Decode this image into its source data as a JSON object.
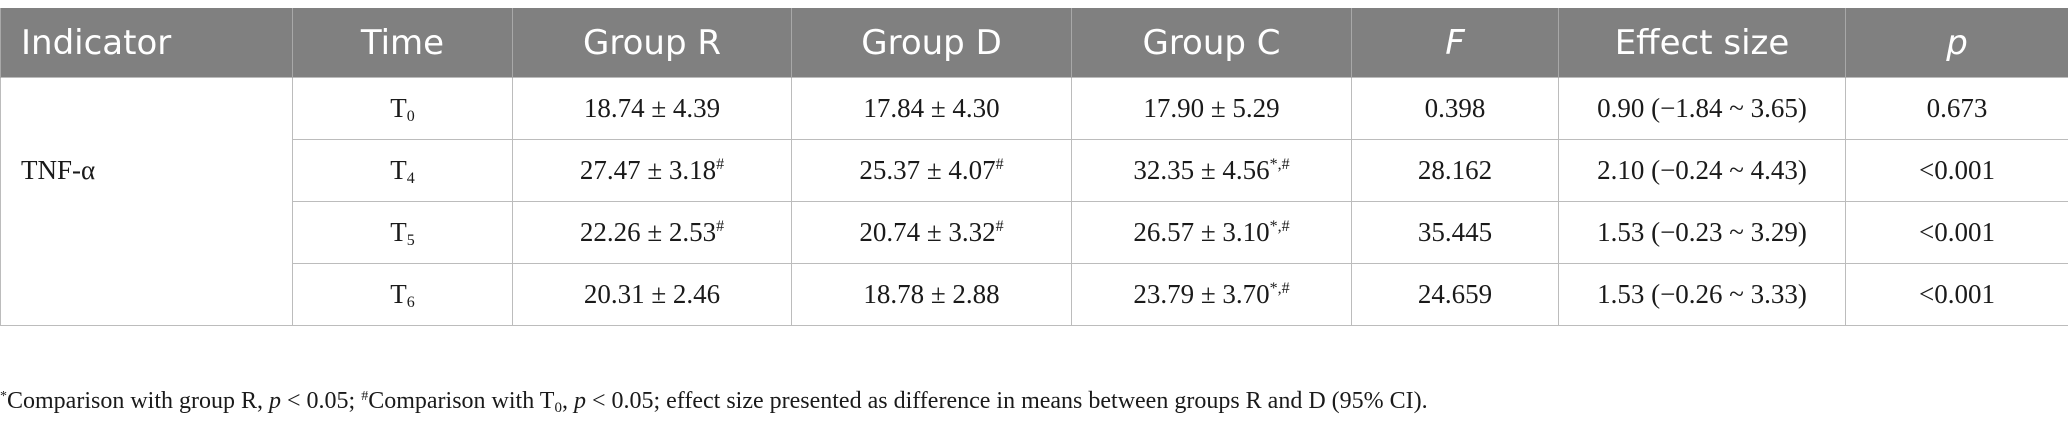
{
  "headers": {
    "indicator": "Indicator",
    "time": "Time",
    "group_r": "Group R",
    "group_d": "Group D",
    "group_c": "Group C",
    "f": "F",
    "effect_size": "Effect size",
    "p": "p"
  },
  "indicator_label": "TNF-α",
  "rows": [
    {
      "time_base": "T",
      "time_sub": "0",
      "r_val": "18.74 ± 4.39",
      "r_sup": "",
      "d_val": "17.84 ± 4.30",
      "d_sup": "",
      "c_val": "17.90 ± 5.29",
      "c_sup": "",
      "f": "0.398",
      "effect": "0.90 (−1.84 ~ 3.65)",
      "p": "0.673"
    },
    {
      "time_base": "T",
      "time_sub": "4",
      "r_val": "27.47 ± 3.18",
      "r_sup": "#",
      "d_val": "25.37 ± 4.07",
      "d_sup": "#",
      "c_val": "32.35 ± 4.56",
      "c_sup": "*,#",
      "f": "28.162",
      "effect": "2.10 (−0.24 ~ 4.43)",
      "p": "<0.001"
    },
    {
      "time_base": "T",
      "time_sub": "5",
      "r_val": "22.26 ± 2.53",
      "r_sup": "#",
      "d_val": "20.74 ± 3.32",
      "d_sup": "#",
      "c_val": "26.57 ± 3.10",
      "c_sup": "*,#",
      "f": "35.445",
      "effect": "1.53 (−0.23 ~ 3.29)",
      "p": "<0.001"
    },
    {
      "time_base": "T",
      "time_sub": "6",
      "r_val": "20.31 ± 2.46",
      "r_sup": "",
      "d_val": "18.78 ± 2.88",
      "d_sup": "",
      "c_val": "23.79 ± 3.70",
      "c_sup": "*,#",
      "f": "24.659",
      "effect": "1.53 (−0.26 ~ 3.33)",
      "p": "<0.001"
    }
  ],
  "footnote": {
    "star": "*",
    "part1": "Comparison with group R, ",
    "p1_italic": "p",
    "part2": " < 0.05; ",
    "hash": "#",
    "part3": "Comparison with T",
    "t_sub": "0",
    "part4": ", ",
    "p2_italic": "p",
    "part5": " < 0.05; effect size presented as difference in means between groups R and D (95% CI)."
  }
}
